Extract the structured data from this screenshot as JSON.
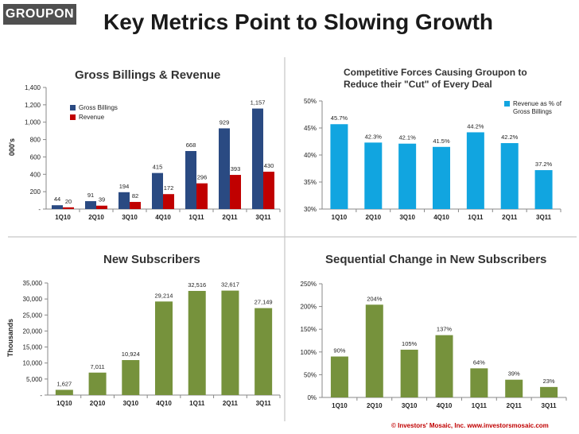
{
  "header": {
    "logo": "GROUPON",
    "title": "Key Metrics Point to Slowing Growth"
  },
  "footer": {
    "copyright": "© Investors' Mosaic, Inc.   www.investorsmosaic.com"
  },
  "colors": {
    "navy": "#2a4a82",
    "red": "#c00000",
    "cyan": "#11a5e0",
    "olive": "#76923c",
    "divider": "#c6c6c6"
  },
  "chart_data": [
    {
      "id": "billings",
      "type": "bar",
      "title": "Gross Billings & Revenue",
      "ylabel": "000's",
      "ylim": [
        0,
        1400
      ],
      "yticks": [
        0,
        200,
        400,
        600,
        800,
        1000,
        1200,
        1400
      ],
      "yticklabels": [
        "-",
        "200",
        "400",
        "600",
        "800",
        "1,000",
        "1,200",
        "1,400"
      ],
      "categories": [
        "1Q10",
        "2Q10",
        "3Q10",
        "4Q10",
        "1Q11",
        "2Q11",
        "3Q11"
      ],
      "series": [
        {
          "name": "Gross Billings",
          "color": "#2a4a82",
          "values": [
            44,
            91,
            194,
            415,
            668,
            929,
            1157
          ],
          "labels": [
            "44",
            "91",
            "194",
            "415",
            "668",
            "929",
            "1,157"
          ]
        },
        {
          "name": "Revenue",
          "color": "#c00000",
          "values": [
            20,
            39,
            82,
            172,
            296,
            393,
            430
          ],
          "labels": [
            "20",
            "39",
            "82",
            "172",
            "296",
            "393",
            "430"
          ]
        }
      ]
    },
    {
      "id": "cut",
      "type": "bar",
      "title": [
        "Competitive Forces Causing Groupon to",
        "Reduce their \"Cut\" of Every Deal"
      ],
      "ylim": [
        30,
        50
      ],
      "yticks": [
        30,
        35,
        40,
        45,
        50
      ],
      "yticklabels": [
        "30%",
        "35%",
        "40%",
        "45%",
        "50%"
      ],
      "categories": [
        "1Q10",
        "2Q10",
        "3Q10",
        "4Q10",
        "1Q11",
        "2Q11",
        "3Q11"
      ],
      "series": [
        {
          "name": "Revenue as % of Gross Billings",
          "legend": [
            "Revenue as % of",
            "Gross Billings"
          ],
          "color": "#11a5e0",
          "values": [
            45.7,
            42.3,
            42.1,
            41.5,
            44.2,
            42.2,
            37.2
          ],
          "labels": [
            "45.7%",
            "42.3%",
            "42.1%",
            "41.5%",
            "44.2%",
            "42.2%",
            "37.2%"
          ]
        }
      ]
    },
    {
      "id": "subs",
      "type": "bar",
      "title": "New Subscribers",
      "ylabel": "Thousands",
      "ylim": [
        0,
        35000
      ],
      "yticks": [
        0,
        5000,
        10000,
        15000,
        20000,
        25000,
        30000,
        35000
      ],
      "yticklabels": [
        "-",
        "5,000",
        "10,000",
        "15,000",
        "20,000",
        "25,000",
        "30,000",
        "35,000"
      ],
      "categories": [
        "1Q10",
        "2Q10",
        "3Q10",
        "4Q10",
        "1Q11",
        "2Q11",
        "3Q11"
      ],
      "series": [
        {
          "name": "New Subscribers",
          "color": "#76923c",
          "values": [
            1627,
            7011,
            10924,
            29214,
            32516,
            32617,
            27149
          ],
          "labels": [
            "1,627",
            "7,011",
            "10,924",
            "29,214",
            "32,516",
            "32,617",
            "27,149"
          ]
        }
      ]
    },
    {
      "id": "seq",
      "type": "bar",
      "title": "Sequential Change in New Subscribers",
      "ylim": [
        0,
        250
      ],
      "yticks": [
        0,
        50,
        100,
        150,
        200,
        250
      ],
      "yticklabels": [
        "0%",
        "50%",
        "100%",
        "150%",
        "200%",
        "250%"
      ],
      "categories": [
        "1Q10",
        "2Q10",
        "3Q10",
        "4Q10",
        "1Q11",
        "2Q11",
        "3Q11"
      ],
      "series": [
        {
          "name": "Sequential Change",
          "color": "#76923c",
          "values": [
            90,
            204,
            105,
            137,
            64,
            39,
            23
          ],
          "labels": [
            "90%",
            "204%",
            "105%",
            "137%",
            "64%",
            "39%",
            "23%"
          ]
        }
      ]
    }
  ]
}
